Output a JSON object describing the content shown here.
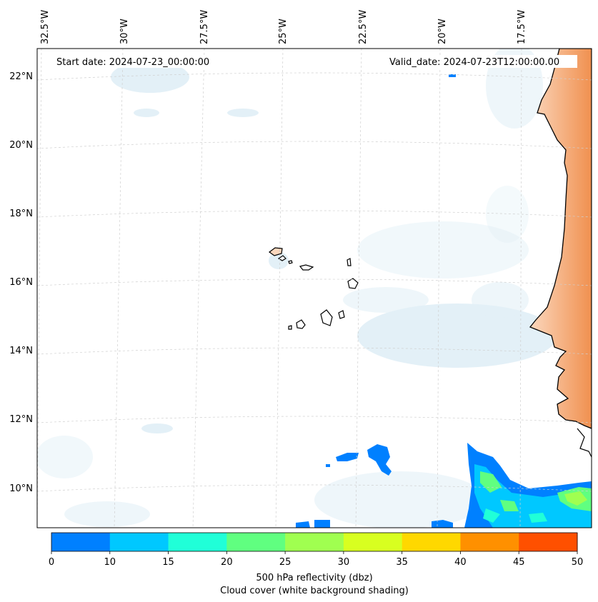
{
  "map": {
    "region": "Eastern Atlantic / Cape Verde / West African coast",
    "start_date_text": "Start date: 2024-07-23_00:00:00",
    "valid_date_text": "Valid_date: 2024-07-23T12:00:00.00",
    "lon_labels": [
      "32.5°W",
      "30°W",
      "27.5°W",
      "25°W",
      "22.5°W",
      "20°W",
      "17.5°W"
    ],
    "lat_labels": [
      "22°N",
      "20°N",
      "18°N",
      "16°N",
      "14°N",
      "12°N",
      "10°N"
    ]
  },
  "colorbar": {
    "ticks": [
      "0",
      "10",
      "15",
      "20",
      "25",
      "30",
      "35",
      "40",
      "45",
      "50"
    ],
    "colors": [
      "#0080ff",
      "#00c8ff",
      "#20ffd8",
      "#60ff80",
      "#a0ff50",
      "#d8ff20",
      "#ffd800",
      "#ff9000",
      "#ff5000"
    ],
    "title_line1": "500 hPa reflectivity (dbz)",
    "title_line2": "Cloud cover (white background shading)"
  },
  "layers": {
    "land_color": "#f4a469",
    "cloud_color": "#d6ecf5",
    "gridline_color": "#c8c8c8"
  }
}
